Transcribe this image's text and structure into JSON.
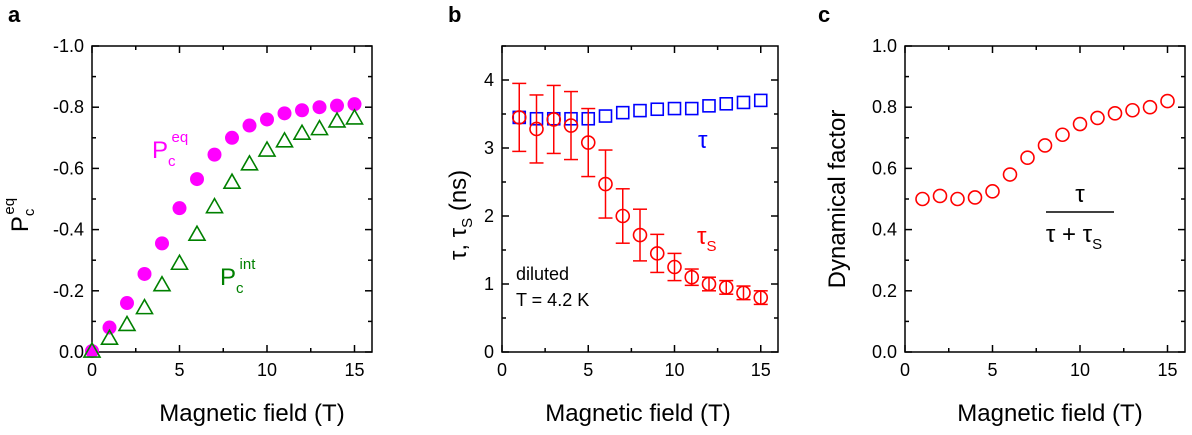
{
  "chart_data": [
    {
      "type": "scatter",
      "panel_label": "a",
      "xlabel": "Magnetic field (T)",
      "ylabel": "P",
      "ylabel_sub": "c",
      "ylabel_sup": "eq",
      "xlim": [
        0,
        16
      ],
      "ylim": [
        0,
        -1.0
      ],
      "y_inverted": true,
      "xticks": [
        0,
        5,
        10,
        15
      ],
      "yticks": [
        0.0,
        -0.2,
        -0.4,
        -0.6,
        -0.8,
        -1.0
      ],
      "ytick_labels": [
        "0.0",
        "-0.2",
        "-0.4",
        "-0.6",
        "-0.8",
        "-1.0"
      ],
      "series": [
        {
          "name": "P",
          "name_sub": "c",
          "name_sup": "eq",
          "marker": "filled-circle",
          "color": "#ff00ff",
          "x": [
            0,
            1,
            2,
            3,
            4,
            5,
            6,
            7,
            8,
            9,
            10,
            11,
            12,
            13,
            14,
            15
          ],
          "y": [
            -0.003,
            -0.08,
            -0.16,
            -0.255,
            -0.355,
            -0.47,
            -0.565,
            -0.645,
            -0.7,
            -0.74,
            -0.76,
            -0.78,
            -0.79,
            -0.8,
            -0.805,
            -0.81
          ]
        },
        {
          "name": "P",
          "name_sub": "c",
          "name_sup": "int",
          "marker": "open-triangle",
          "color": "#008000",
          "x": [
            0,
            1,
            2,
            3,
            4,
            5,
            6,
            7,
            8,
            9,
            10,
            11,
            12,
            13,
            14,
            15
          ],
          "y": [
            -0.003,
            -0.045,
            -0.09,
            -0.145,
            -0.22,
            -0.29,
            -0.385,
            -0.475,
            -0.555,
            -0.615,
            -0.66,
            -0.69,
            -0.715,
            -0.73,
            -0.755,
            -0.765
          ]
        }
      ]
    },
    {
      "type": "scatter",
      "panel_label": "b",
      "xlabel": "Magnetic field (T)",
      "ylabel": "τ, τ",
      "ylabel_sub": "S",
      "ylabel_unit": " (ns)",
      "xlim": [
        0,
        16
      ],
      "ylim": [
        0,
        4.5
      ],
      "xticks": [
        0,
        5,
        10,
        15
      ],
      "yticks": [
        0,
        1,
        2,
        3,
        4
      ],
      "annotation": [
        "diluted",
        "T = 4.2 K"
      ],
      "series": [
        {
          "name": "τ",
          "marker": "open-square",
          "color": "#0000ff",
          "x": [
            1,
            2,
            3,
            4,
            5,
            6,
            7,
            8,
            9,
            10,
            11,
            12,
            13,
            14,
            15
          ],
          "y": [
            3.45,
            3.43,
            3.43,
            3.43,
            3.43,
            3.47,
            3.52,
            3.55,
            3.57,
            3.58,
            3.58,
            3.62,
            3.65,
            3.67,
            3.7
          ]
        },
        {
          "name": "τ",
          "name_sub": "S",
          "marker": "open-circle",
          "color": "#ff0000",
          "x": [
            1,
            2,
            3,
            4,
            5,
            6,
            7,
            8,
            9,
            10,
            11,
            12,
            13,
            14,
            15
          ],
          "y": [
            3.45,
            3.28,
            3.42,
            3.33,
            3.08,
            2.47,
            2.0,
            1.72,
            1.45,
            1.25,
            1.1,
            1.0,
            0.95,
            0.87,
            0.8
          ],
          "err": [
            0.5,
            0.5,
            0.5,
            0.5,
            0.5,
            0.5,
            0.4,
            0.38,
            0.28,
            0.2,
            0.12,
            0.1,
            0.1,
            0.1,
            0.1
          ]
        }
      ]
    },
    {
      "type": "scatter",
      "panel_label": "c",
      "xlabel": "Magnetic field (T)",
      "ylabel": "Dynamical factor",
      "xlim": [
        0,
        16
      ],
      "ylim": [
        0,
        1.0
      ],
      "xticks": [
        0,
        5,
        10,
        15
      ],
      "yticks": [
        0.0,
        0.2,
        0.4,
        0.6,
        0.8,
        1.0
      ],
      "ytick_labels": [
        "0.0",
        "0.2",
        "0.4",
        "0.6",
        "0.8",
        "1.0"
      ],
      "formula": {
        "numerator": "τ",
        "denominator": "τ + τ",
        "denominator_sub": "S"
      },
      "series": [
        {
          "marker": "open-circle",
          "color": "#ff0000",
          "x": [
            1,
            2,
            3,
            4,
            5,
            6,
            7,
            8,
            9,
            10,
            11,
            12,
            13,
            14,
            15
          ],
          "y": [
            0.5,
            0.51,
            0.5,
            0.505,
            0.525,
            0.58,
            0.635,
            0.675,
            0.71,
            0.745,
            0.765,
            0.78,
            0.79,
            0.8,
            0.82
          ]
        }
      ]
    }
  ]
}
